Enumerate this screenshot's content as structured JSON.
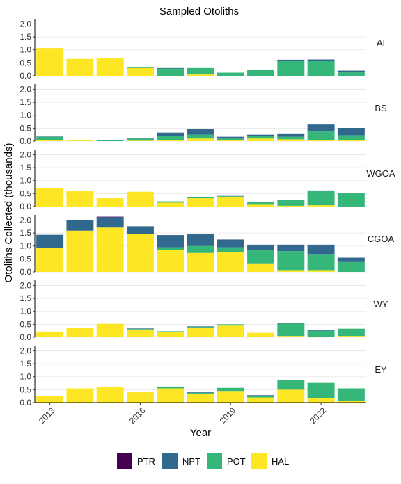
{
  "chart_data": {
    "type": "bar",
    "stacked": true,
    "faceted": true,
    "title": "Sampled Otoliths",
    "xlabel": "Year",
    "ylabel": "Otoliths Collected (thousands)",
    "x": [
      2013,
      2014,
      2015,
      2016,
      2017,
      2018,
      2019,
      2020,
      2021,
      2022,
      2023
    ],
    "x_tick_labels": [
      "2013",
      "2016",
      "2019",
      "2022"
    ],
    "x_tick_values": [
      2013,
      2016,
      2019,
      2022
    ],
    "ylim": [
      0,
      2.2
    ],
    "y_ticks": [
      "0.0",
      "0.5",
      "1.0",
      "1.5",
      "2.0"
    ],
    "grid": "horizontal",
    "legend": {
      "position": "bottom",
      "entries": [
        {
          "key": "PTR",
          "label": "PTR",
          "color": "#440154"
        },
        {
          "key": "NPT",
          "label": "NPT",
          "color": "#31688E"
        },
        {
          "key": "POT",
          "label": "POT",
          "color": "#35B779"
        },
        {
          "key": "HAL",
          "label": "HAL",
          "color": "#FDE725"
        }
      ]
    },
    "stack_order_bottom_to_top": [
      "HAL",
      "POT",
      "NPT",
      "PTR"
    ],
    "panels": [
      {
        "label": "AI",
        "series": [
          {
            "name": "HAL",
            "values": [
              1.07,
              0.65,
              0.67,
              0.3,
              0.0,
              0.05,
              0.0,
              0.0,
              0.0,
              0.0,
              0.0
            ]
          },
          {
            "name": "POT",
            "values": [
              0.0,
              0.0,
              0.0,
              0.03,
              0.28,
              0.25,
              0.12,
              0.22,
              0.58,
              0.58,
              0.13
            ]
          },
          {
            "name": "NPT",
            "values": [
              0.0,
              0.0,
              0.0,
              0.0,
              0.02,
              0.0,
              0.0,
              0.02,
              0.04,
              0.05,
              0.07
            ]
          },
          {
            "name": "PTR",
            "values": [
              0,
              0,
              0,
              0,
              0,
              0,
              0,
              0,
              0,
              0,
              0
            ]
          }
        ]
      },
      {
        "label": "BS",
        "series": [
          {
            "name": "HAL",
            "values": [
              0.05,
              0.03,
              0.0,
              0.02,
              0.05,
              0.1,
              0.05,
              0.1,
              0.07,
              0.05,
              0.05
            ]
          },
          {
            "name": "POT",
            "values": [
              0.12,
              0.0,
              0.03,
              0.08,
              0.15,
              0.15,
              0.05,
              0.1,
              0.1,
              0.32,
              0.18
            ]
          },
          {
            "name": "NPT",
            "values": [
              0.01,
              0.0,
              0.0,
              0.02,
              0.13,
              0.23,
              0.07,
              0.05,
              0.13,
              0.27,
              0.28
            ]
          },
          {
            "name": "PTR",
            "values": [
              0,
              0,
              0,
              0,
              0,
              0,
              0,
              0,
              0,
              0,
              0
            ]
          }
        ]
      },
      {
        "label": "WGOA",
        "series": [
          {
            "name": "HAL",
            "values": [
              0.7,
              0.59,
              0.32,
              0.57,
              0.15,
              0.32,
              0.38,
              0.07,
              0.03,
              0.05,
              0.0
            ]
          },
          {
            "name": "POT",
            "values": [
              0.0,
              0.0,
              0.0,
              0.0,
              0.05,
              0.03,
              0.02,
              0.1,
              0.23,
              0.55,
              0.53
            ]
          },
          {
            "name": "NPT",
            "values": [
              0.0,
              0.0,
              0.0,
              0.0,
              0.0,
              0.01,
              0.01,
              0.0,
              0.0,
              0.02,
              0.0
            ]
          },
          {
            "name": "PTR",
            "values": [
              0,
              0,
              0,
              0,
              0,
              0,
              0,
              0,
              0,
              0,
              0
            ]
          }
        ]
      },
      {
        "label": "CGOA",
        "series": [
          {
            "name": "HAL",
            "values": [
              0.93,
              1.59,
              1.71,
              1.46,
              0.85,
              0.73,
              0.77,
              0.33,
              0.07,
              0.07,
              0.0
            ]
          },
          {
            "name": "POT",
            "values": [
              0.0,
              0.0,
              0.0,
              0.0,
              0.1,
              0.27,
              0.18,
              0.5,
              0.73,
              0.62,
              0.38
            ]
          },
          {
            "name": "NPT",
            "values": [
              0.5,
              0.4,
              0.4,
              0.3,
              0.47,
              0.45,
              0.3,
              0.22,
              0.22,
              0.36,
              0.17
            ]
          },
          {
            "name": "PTR",
            "values": [
              0.0,
              0.0,
              0.02,
              0.0,
              0.0,
              0.0,
              0.0,
              0.0,
              0.03,
              0.0,
              0.0
            ]
          }
        ]
      },
      {
        "label": "WY",
        "series": [
          {
            "name": "HAL",
            "values": [
              0.22,
              0.35,
              0.52,
              0.3,
              0.2,
              0.35,
              0.45,
              0.17,
              0.05,
              0.0,
              0.05
            ]
          },
          {
            "name": "POT",
            "values": [
              0.0,
              0.0,
              0.0,
              0.02,
              0.03,
              0.05,
              0.05,
              0.0,
              0.48,
              0.25,
              0.28
            ]
          },
          {
            "name": "NPT",
            "values": [
              0.0,
              0.0,
              0.0,
              0.02,
              0.0,
              0.02,
              0.0,
              0.0,
              0.01,
              0.02,
              0.0
            ]
          },
          {
            "name": "PTR",
            "values": [
              0,
              0,
              0,
              0,
              0,
              0,
              0,
              0,
              0,
              0,
              0
            ]
          }
        ]
      },
      {
        "label": "EY",
        "series": [
          {
            "name": "HAL",
            "values": [
              0.26,
              0.55,
              0.6,
              0.4,
              0.55,
              0.35,
              0.45,
              0.2,
              0.5,
              0.18,
              0.07
            ]
          },
          {
            "name": "POT",
            "values": [
              0.0,
              0.0,
              0.0,
              0.0,
              0.07,
              0.03,
              0.12,
              0.07,
              0.37,
              0.58,
              0.48
            ]
          },
          {
            "name": "NPT",
            "values": [
              0.0,
              0.0,
              0.0,
              0.0,
              0.0,
              0.02,
              0.0,
              0.02,
              0.0,
              0.0,
              0.0
            ]
          },
          {
            "name": "PTR",
            "values": [
              0,
              0,
              0,
              0,
              0,
              0,
              0,
              0,
              0,
              0,
              0
            ]
          }
        ]
      }
    ]
  }
}
